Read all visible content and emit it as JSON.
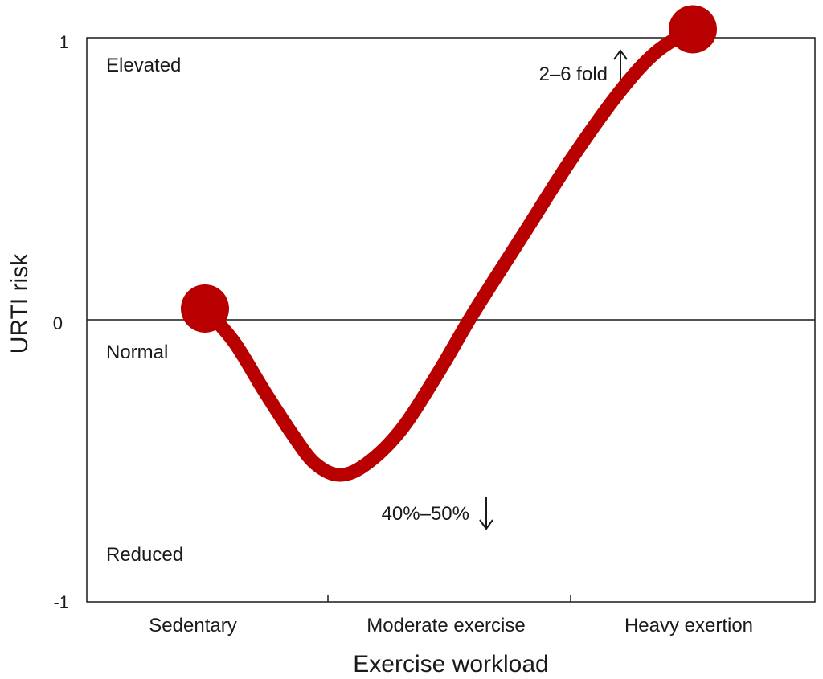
{
  "chart_data": {
    "type": "line",
    "title": "",
    "xlabel": "Exercise workload",
    "ylabel": "URTI risk",
    "categories": [
      "Sedentary",
      "Moderate exercise",
      "Heavy exertion"
    ],
    "ylim": [
      -1,
      1
    ],
    "yticks": [
      "1",
      "0",
      "-1"
    ],
    "y_tick_values": [
      1,
      0,
      -1
    ],
    "region_labels": {
      "elevated": "Elevated",
      "normal": "Normal",
      "reduced": "Reduced"
    },
    "annotations": {
      "peak": "2–6 fold",
      "trough": "40%–50%"
    },
    "series": [
      {
        "color": "#b80000",
        "x": [
          0.0,
          0.12,
          0.24,
          0.36,
          0.45,
          0.55,
          0.66,
          0.8,
          0.95,
          1.1,
          1.3,
          1.5,
          1.7,
          1.85,
          2.0
        ],
        "y": [
          0.04,
          -0.08,
          -0.25,
          -0.41,
          -0.51,
          -0.55,
          -0.51,
          -0.39,
          -0.19,
          0.03,
          0.3,
          0.57,
          0.81,
          0.95,
          1.03
        ]
      }
    ],
    "grid": false,
    "legend": "none"
  },
  "colors": {
    "curve": "#b80000",
    "axis": "#1a1a1a"
  }
}
